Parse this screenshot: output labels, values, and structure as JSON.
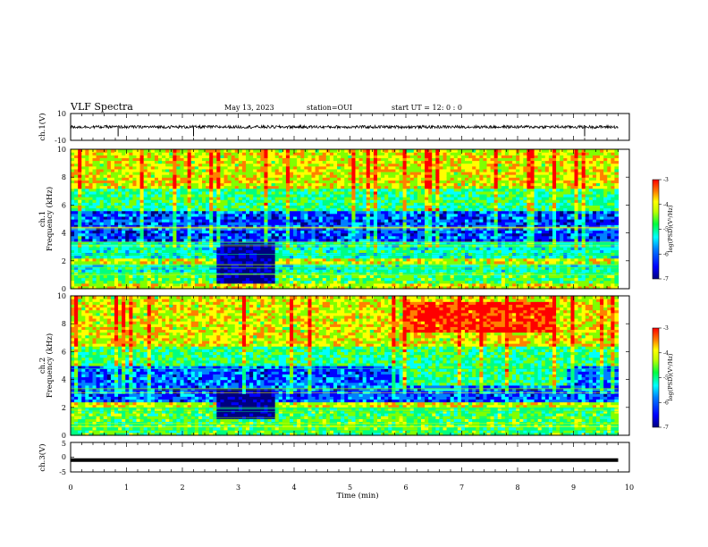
{
  "header": {
    "title": "VLF Spectra",
    "date": "May 13, 2023",
    "station": "station=OUI",
    "start_time": "start UT =  12: 0  : 0"
  },
  "colors": {
    "spectrogram_scale": [
      "#000080",
      "#0000ff",
      "#0080ff",
      "#00ffff",
      "#00ff80",
      "#80ff00",
      "#ffff00",
      "#ff8000",
      "#ff0000"
    ],
    "trace": "#000000"
  },
  "chart_data": [
    {
      "type": "line",
      "panel": "ch1-waveform",
      "ylabel": "ch.1(V)",
      "yticks": [
        "10",
        "-10"
      ],
      "ylim": [
        -10,
        10
      ],
      "xlim": [
        0,
        10
      ],
      "description_values": {
        "baseline": 0,
        "spikes_min": [
          0.85,
          2.2,
          9.2
        ]
      }
    },
    {
      "type": "heatmap",
      "panel": "ch1-spectrogram",
      "ylabel": "Frequency (kHz)",
      "channel_label": "ch.1",
      "yticks": [
        "0",
        "2",
        "4",
        "6",
        "8",
        "10"
      ],
      "ylim": [
        0,
        10
      ],
      "xlim": [
        0,
        9.8
      ],
      "colorbar": {
        "label": "log(PSD)(V²/Hz)",
        "ticks": [
          "-3",
          "-4",
          "-5",
          "-6",
          "-7"
        ],
        "range": [
          -7,
          -3
        ]
      },
      "bands": [
        {
          "fmin": 0,
          "fmax": 0.5,
          "level": 0.7
        },
        {
          "fmin": 0.5,
          "fmax": 1.2,
          "level": 0.55
        },
        {
          "fmin": 1.2,
          "fmax": 1.8,
          "level": 0.45
        },
        {
          "fmin": 1.8,
          "fmax": 2.3,
          "level": 0.68
        },
        {
          "fmin": 2.3,
          "fmax": 3.4,
          "level": 0.45
        },
        {
          "fmin": 3.4,
          "fmax": 5.6,
          "level": 0.22
        },
        {
          "fmin": 5.6,
          "fmax": 7.2,
          "level": 0.5
        },
        {
          "fmin": 7.2,
          "fmax": 10,
          "level": 0.7
        }
      ],
      "quiet_interval": {
        "tmin": 2.55,
        "tmax": 3.6,
        "fmin": 0.5,
        "fmax": 3.5
      }
    },
    {
      "type": "heatmap",
      "panel": "ch2-spectrogram",
      "ylabel": "Frequency (kHz)",
      "channel_label": "ch.2",
      "yticks": [
        "0",
        "2",
        "4",
        "6",
        "8",
        "10"
      ],
      "ylim": [
        0,
        10
      ],
      "xlim": [
        0,
        9.8
      ],
      "colorbar": {
        "label": "log(PSD)(V²/Hz)",
        "ticks": [
          "-3",
          "-4",
          "-5",
          "-6",
          "-7"
        ],
        "range": [
          -7,
          -3
        ]
      },
      "bands": [
        {
          "fmin": 0,
          "fmax": 0.8,
          "level": 0.55
        },
        {
          "fmin": 0.8,
          "fmax": 2.0,
          "level": 0.55
        },
        {
          "fmin": 2.0,
          "fmax": 2.5,
          "level": 0.7
        },
        {
          "fmin": 2.5,
          "fmax": 5.0,
          "level": 0.25
        },
        {
          "fmin": 5.0,
          "fmax": 6.5,
          "level": 0.5
        },
        {
          "fmin": 6.5,
          "fmax": 10,
          "level": 0.7
        }
      ],
      "quiet_interval": {
        "tmin": 2.55,
        "tmax": 3.6,
        "fmin": 1.2,
        "fmax": 3.5
      },
      "hot_region": {
        "tmin": 6.0,
        "tmax": 8.6,
        "fmin": 7.5,
        "fmax": 9.5
      },
      "mid_band": {
        "tmin": 5.85,
        "tmax": 8.85,
        "fmin": 3.6,
        "fmax": 5.2
      }
    },
    {
      "type": "line",
      "panel": "ch3-waveform",
      "ylabel": "ch.3(V)",
      "yticks": [
        "5",
        "0",
        "-5"
      ],
      "ylim": [
        -5,
        5
      ],
      "xlim": [
        0,
        10
      ],
      "description_values": {
        "constant": -1
      }
    }
  ],
  "xaxis": {
    "label": "Time (min)",
    "ticks": [
      "0",
      "1",
      "2",
      "3",
      "4",
      "5",
      "6",
      "7",
      "8",
      "9",
      "10"
    ],
    "range": [
      0,
      10
    ]
  }
}
